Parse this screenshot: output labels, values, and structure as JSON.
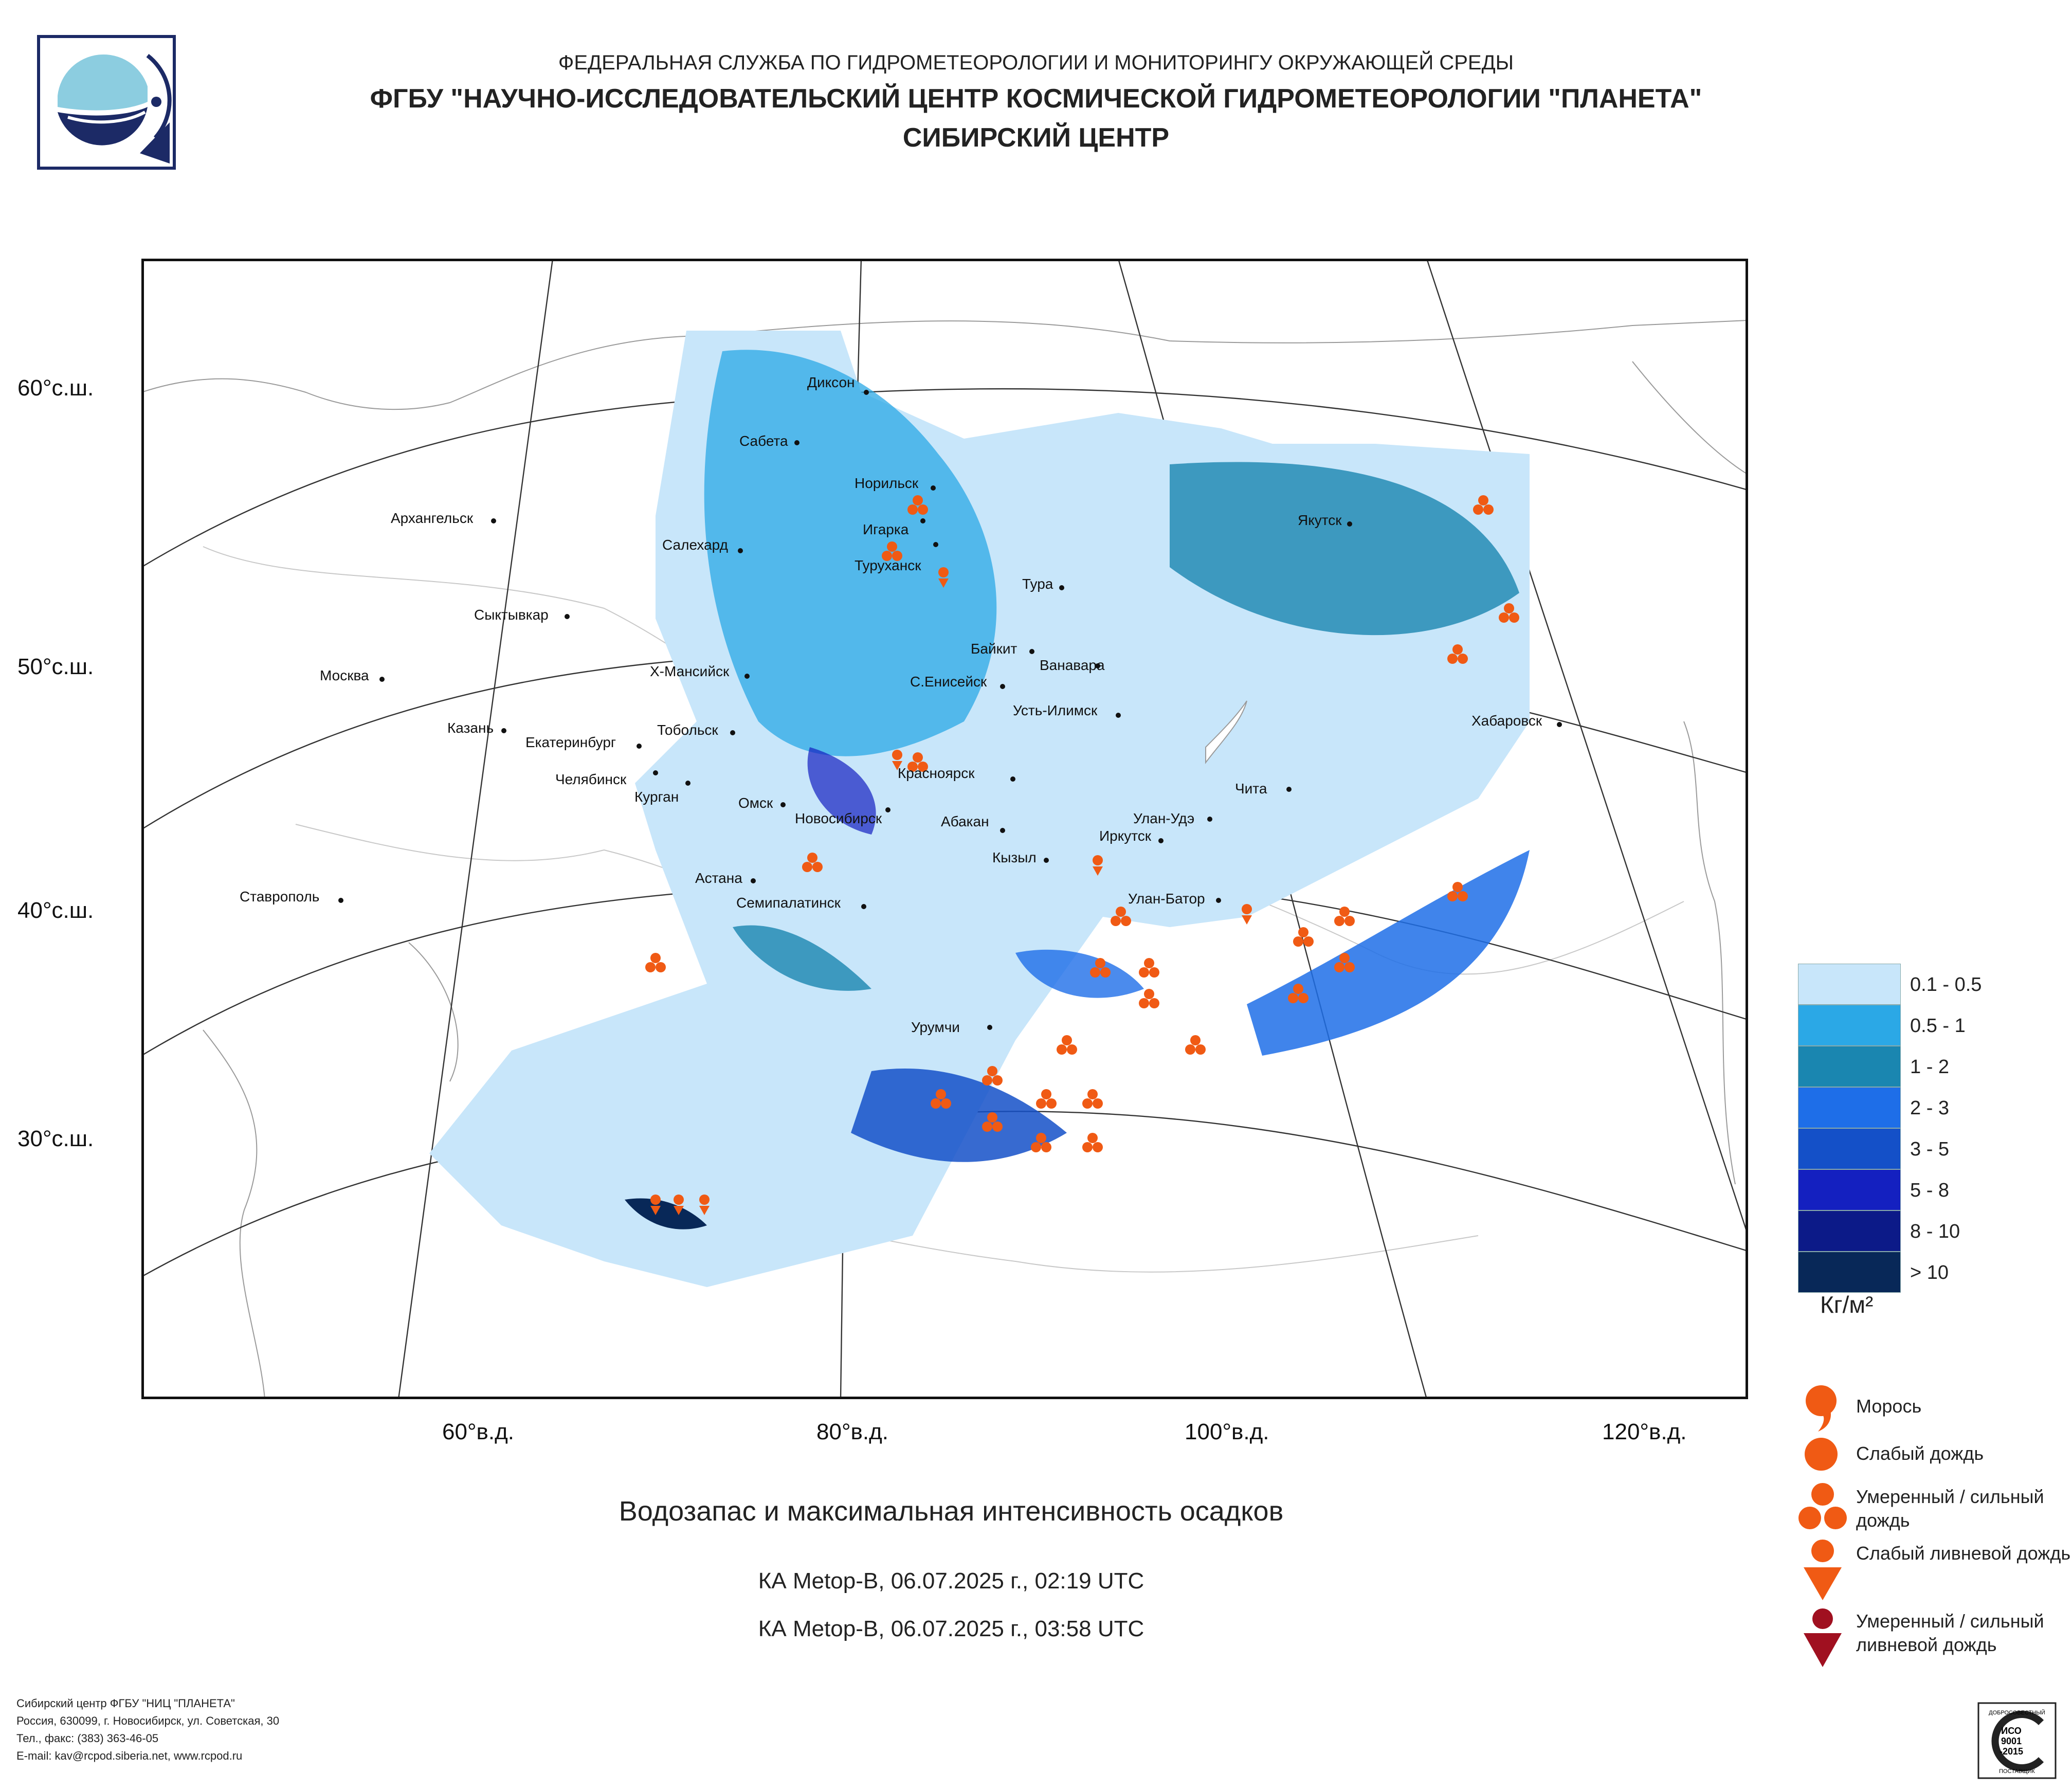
{
  "header": {
    "line1": "ФЕДЕРАЛЬНАЯ СЛУЖБА ПО ГИДРОМЕТЕОРОЛОГИИ И МОНИТОРИНГУ ОКРУЖАЮЩЕЙ СРЕДЫ",
    "line2": "ФГБУ \"НАУЧНО-ИССЛЕДОВАТЕЛЬСКИЙ ЦЕНТР КОСМИЧЕСКОЙ ГИДРОМЕТЕОРОЛОГИИ \"ПЛАНЕТА\"",
    "line3": "СИБИРСКИЙ ЦЕНТР"
  },
  "axes": {
    "lat_labels": [
      "60°с.ш.",
      "50°с.ш.",
      "40°с.ш.",
      "30°с.ш."
    ],
    "lon_labels": [
      "60°в.д.",
      "80°в.д.",
      "100°в.д.",
      "120°в.д."
    ]
  },
  "cities": [
    "Диксон",
    "Сабета",
    "Норильск",
    "Игарка",
    "Туруханск",
    "Салехард",
    "Архангельск",
    "Сыктывкар",
    "Москва",
    "Тура",
    "Байкит",
    "Ванавара",
    "Якутск",
    "Х-Мансийск",
    "С.Енисейск",
    "Усть-Илимск",
    "Казань",
    "Тобольск",
    "Екатеринбург",
    "Челябинск",
    "Курган",
    "Красноярск",
    "Омск",
    "Новосибирск",
    "Абакан",
    "Улан-Удэ",
    "Чита",
    "Хабаровск",
    "Иркутск",
    "Кызыл",
    "Астана",
    "Семипалатинск",
    "Улан-Батор",
    "Ставрополь",
    "Урумчи"
  ],
  "caption": "Водозапас и максимальная интенсивность осадков",
  "passes": [
    "КА Metop-B, 06.07.2025 г., 02:19 UTC",
    "КА Metop-B, 06.07.2025 г., 03:58 UTC"
  ],
  "legend": {
    "classes": [
      {
        "label": "0.1 - 0.5",
        "color": "#c8e6fa"
      },
      {
        "label": "0.5 - 1",
        "color": "#2ba8e6"
      },
      {
        "label": "1 - 2",
        "color": "#1a86b0"
      },
      {
        "label": "2 - 3",
        "color": "#1e6ee8"
      },
      {
        "label": "3 - 5",
        "color": "#1450c8"
      },
      {
        "label": "5 - 8",
        "color": "#1420c0"
      },
      {
        "label": "8 - 10",
        "color": "#0c1a88"
      },
      {
        "label": "> 10",
        "color": "#082858"
      }
    ],
    "units": "Кг/м²"
  },
  "symbols": [
    {
      "label": "Морось",
      "icon": "drizzle-icon"
    },
    {
      "label": "Слабый дождь",
      "icon": "light-rain-icon"
    },
    {
      "label": "Умеренный / сильный дождь",
      "icon": "heavy-rain-icon"
    },
    {
      "label": "Слабый ливневой дождь",
      "icon": "light-shower-icon"
    },
    {
      "label": "Умеренный / сильный ливневой дождь",
      "icon": "heavy-shower-icon"
    }
  ],
  "footer": [
    "Сибирский центр ФГБУ \"НИЦ \"ПЛАНЕТА\"",
    "Россия, 630099, г. Новосибирск, ул. Советская, 30",
    "Тел., факс: (383) 363-46-05",
    "E-mail: kav@rcpod.siberia.net, www.rcpod.ru"
  ],
  "iso_badge": {
    "top": "ДОБРОСОВЕСТНЫЙ",
    "mid1": "ИСО",
    "mid2": "9001",
    "mid3": "-2015",
    "bottom": "ПОСТАВЩИК"
  },
  "colors": {
    "accent": "#f05a14",
    "shower_heavy": "#a01020",
    "drizzle": "#f05a14"
  }
}
